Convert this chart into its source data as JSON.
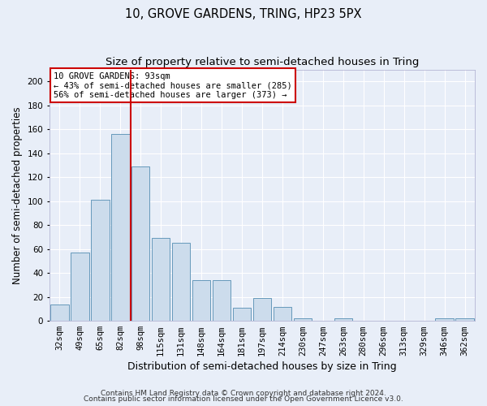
{
  "title": "10, GROVE GARDENS, TRING, HP23 5PX",
  "subtitle": "Size of property relative to semi-detached houses in Tring",
  "xlabel": "Distribution of semi-detached houses by size in Tring",
  "ylabel": "Number of semi-detached properties",
  "categories": [
    "32sqm",
    "49sqm",
    "65sqm",
    "82sqm",
    "98sqm",
    "115sqm",
    "131sqm",
    "148sqm",
    "164sqm",
    "181sqm",
    "197sqm",
    "214sqm",
    "230sqm",
    "247sqm",
    "263sqm",
    "280sqm",
    "296sqm",
    "313sqm",
    "329sqm",
    "346sqm",
    "362sqm"
  ],
  "values": [
    14,
    57,
    101,
    156,
    129,
    69,
    65,
    34,
    34,
    11,
    19,
    12,
    2,
    0,
    2,
    0,
    0,
    0,
    0,
    2,
    2
  ],
  "bar_color": "#ccdcec",
  "bar_edge_color": "#6699bb",
  "vline_color": "#cc0000",
  "vline_x": 3.5,
  "annotation_text": "10 GROVE GARDENS: 93sqm\n← 43% of semi-detached houses are smaller (285)\n56% of semi-detached houses are larger (373) →",
  "annotation_box_facecolor": "#ffffff",
  "annotation_box_edgecolor": "#cc0000",
  "ylim": [
    0,
    210
  ],
  "yticks": [
    0,
    20,
    40,
    60,
    80,
    100,
    120,
    140,
    160,
    180,
    200
  ],
  "background_color": "#e8eef8",
  "plot_bg_color": "#e8eef8",
  "title_fontsize": 10.5,
  "subtitle_fontsize": 9.5,
  "ylabel_fontsize": 8.5,
  "xlabel_fontsize": 9,
  "tick_fontsize": 7.5,
  "annotation_fontsize": 7.5,
  "footer1": "Contains HM Land Registry data © Crown copyright and database right 2024.",
  "footer2": "Contains public sector information licensed under the Open Government Licence v3.0.",
  "footer_fontsize": 6.5
}
